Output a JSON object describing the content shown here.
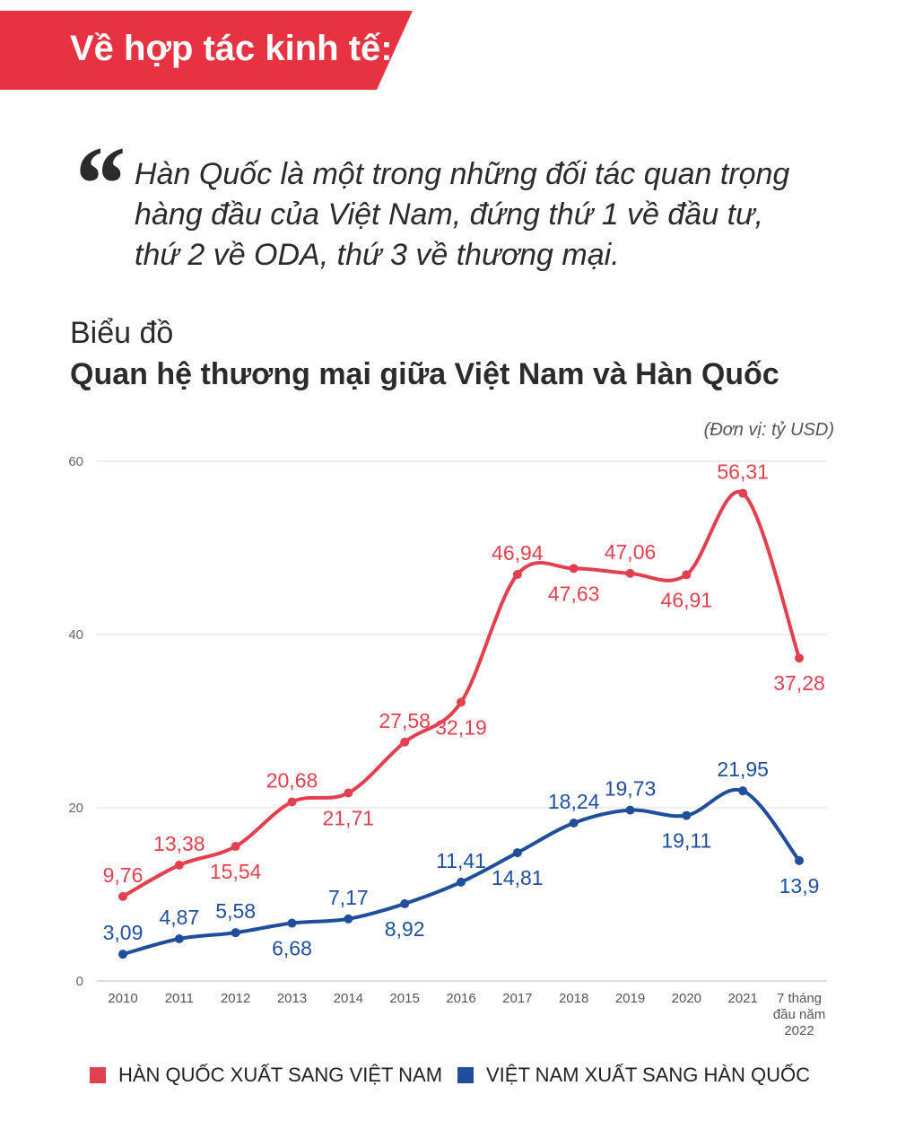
{
  "banner": {
    "text": "Về hợp tác kinh tế:",
    "color": "#e63241"
  },
  "quote": {
    "mark": "“",
    "lines": [
      "Hàn Quốc là một trong những đối tác quan trọng",
      "hàng đầu của Việt Nam, đứng thứ 1 về đầu tư,",
      "thứ 2 về ODA, thứ 3 về thương mại."
    ]
  },
  "subtitle": "Biểu đồ",
  "chart_data": {
    "type": "line",
    "title": "Quan hệ thương mại giữa Việt Nam và Hàn Quốc",
    "unit": "(Đơn vị: tỷ USD)",
    "categories": [
      "2010",
      "2011",
      "2012",
      "2013",
      "2014",
      "2015",
      "2016",
      "2017",
      "2018",
      "2019",
      "2020",
      "2021",
      "7 tháng đầu năm 2022"
    ],
    "category_lines": [
      [
        "2010"
      ],
      [
        "2011"
      ],
      [
        "2012"
      ],
      [
        "2013"
      ],
      [
        "2014"
      ],
      [
        "2015"
      ],
      [
        "2016"
      ],
      [
        "2017"
      ],
      [
        "2018"
      ],
      [
        "2019"
      ],
      [
        "2020"
      ],
      [
        "2021"
      ],
      [
        "7 tháng",
        "đầu năm",
        "2022"
      ]
    ],
    "ylim": [
      0,
      60
    ],
    "yticks": [
      0,
      20,
      40,
      60
    ],
    "grid": true,
    "legend_position": "bottom",
    "series": [
      {
        "name": "HÀN QUỐC XUẤT SANG VIỆT NAM",
        "color": "#e2404f",
        "values": [
          9.76,
          13.38,
          15.54,
          20.68,
          21.71,
          27.58,
          32.19,
          46.94,
          47.63,
          47.06,
          46.91,
          56.31,
          37.28
        ],
        "labels": [
          "9,76",
          "13,38",
          "15,54",
          "20,68",
          "21,71",
          "27,58",
          "32,19",
          "46,94",
          "47,63",
          "47,06",
          "46,91",
          "56,31",
          "37,28"
        ],
        "label_sides": [
          "above",
          "above",
          "below",
          "above",
          "below",
          "above",
          "below",
          "above",
          "below",
          "above",
          "below",
          "above",
          "below"
        ]
      },
      {
        "name": "VIỆT NAM XUẤT SANG HÀN QUỐC",
        "color": "#1f4f9c",
        "values": [
          3.09,
          4.87,
          5.58,
          6.68,
          7.17,
          8.92,
          11.41,
          14.81,
          18.24,
          19.73,
          19.11,
          21.95,
          13.9
        ],
        "labels": [
          "3,09",
          "4,87",
          "5,58",
          "6,68",
          "7,17",
          "8,92",
          "11,41",
          "14,81",
          "18,24",
          "19,73",
          "19,11",
          "21,95",
          "13,9"
        ],
        "label_sides": [
          "above",
          "above",
          "above",
          "below",
          "above",
          "below",
          "above",
          "below",
          "above",
          "above",
          "below",
          "above",
          "below"
        ]
      }
    ]
  }
}
